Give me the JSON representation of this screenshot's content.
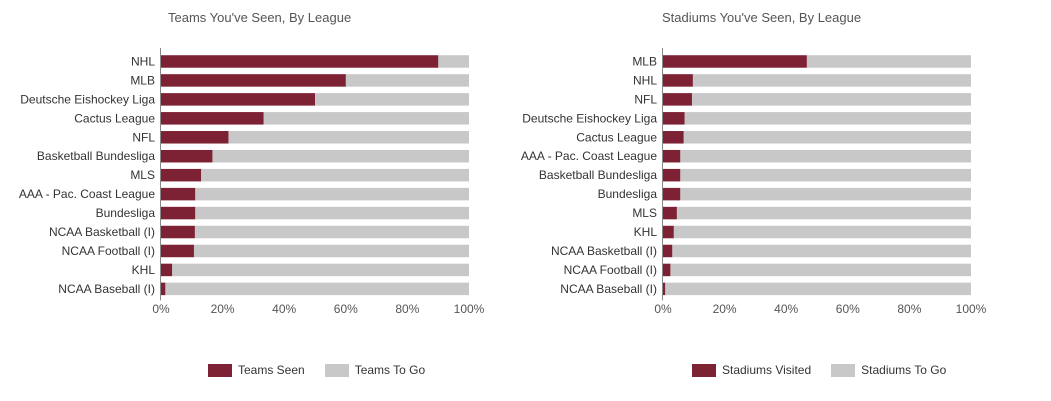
{
  "colors": {
    "seen": "#7d2235",
    "remaining": "#c8c8c8",
    "axis": "#888888"
  },
  "chart_data": [
    {
      "type": "bar",
      "stacked": true,
      "orientation": "horizontal",
      "title": "Teams You've Seen, By League",
      "categories": [
        "NHL",
        "MLB",
        "Deutsche Eishockey Liga",
        "Cactus League",
        "NFL",
        "Basketball Bundesliga",
        "MLS",
        "AAA - Pac. Coast League",
        "Bundesliga",
        "NCAA Basketball (I)",
        "NCAA Football (I)",
        "KHL",
        "NCAA Baseball (I)"
      ],
      "series": [
        {
          "name": "Teams Seen",
          "values": [
            90,
            60,
            50,
            33.3,
            21.9,
            16.7,
            13,
            11.1,
            11.1,
            11,
            10.7,
            3.6,
            1.4
          ]
        },
        {
          "name": "Teams To Go",
          "values": [
            10,
            40,
            50,
            66.7,
            78.1,
            83.3,
            87,
            88.9,
            88.9,
            89,
            89.3,
            96.4,
            98.6
          ]
        }
      ],
      "xlim": [
        0,
        100
      ],
      "xticks": [
        "0%",
        "20%",
        "40%",
        "60%",
        "80%",
        "100%"
      ],
      "legend": "bottom-center"
    },
    {
      "type": "bar",
      "stacked": true,
      "orientation": "horizontal",
      "title": "Stadiums You've Seen, By League",
      "categories": [
        "MLB",
        "NHL",
        "NFL",
        "Deutsche Eishockey Liga",
        "Cactus League",
        "AAA - Pac. Coast League",
        "Basketball Bundesliga",
        "Bundesliga",
        "MLS",
        "KHL",
        "NCAA Basketball (I)",
        "NCAA Football (I)",
        "NCAA Baseball (I)"
      ],
      "series": [
        {
          "name": "Stadiums Visited",
          "values": [
            46.7,
            9.7,
            9.4,
            7,
            6.7,
            5.6,
            5.6,
            5.6,
            4.5,
            3.5,
            3,
            2.4,
            0.7
          ]
        },
        {
          "name": "Stadiums To Go",
          "values": [
            53.3,
            90.3,
            90.6,
            93,
            93.3,
            94.4,
            94.4,
            94.4,
            95.5,
            96.5,
            97,
            97.6,
            99.3
          ]
        }
      ],
      "xlim": [
        0,
        100
      ],
      "xticks": [
        "0%",
        "20%",
        "40%",
        "60%",
        "80%",
        "100%"
      ],
      "legend": "bottom-center"
    }
  ]
}
